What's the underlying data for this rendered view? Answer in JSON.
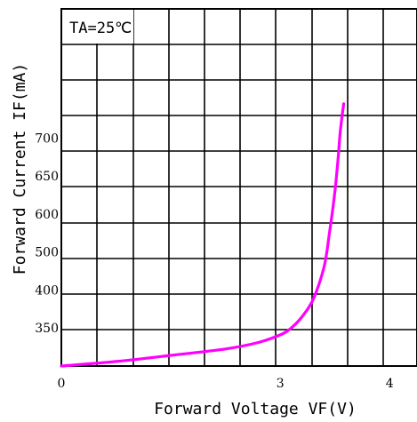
{
  "chart_data": {
    "type": "line",
    "title": "",
    "xlabel": "Forward Voltage VF(V)",
    "ylabel": "Forward Current IF(mA)",
    "annotation": "TA=25℃",
    "x_ticks": [
      {
        "value": 1,
        "label": "0"
      },
      {
        "value": 3,
        "label": "3"
      },
      {
        "value": 4,
        "label": "4"
      }
    ],
    "y_ticks": [
      {
        "value": 1,
        "label": "350"
      },
      {
        "value": 2,
        "label": "400"
      },
      {
        "value": 3,
        "label": "500"
      },
      {
        "value": 4,
        "label": "600"
      },
      {
        "value": 5,
        "label": "650"
      },
      {
        "value": 6,
        "label": "700"
      }
    ],
    "xlim": [
      1,
      4.25
    ],
    "ylim": [
      0,
      9.4
    ],
    "grid": true,
    "series": [
      {
        "color": "#ff00ff",
        "x": [
          1.0,
          1.5,
          2.0,
          2.5,
          2.8,
          3.0,
          3.1,
          3.2,
          3.3,
          3.4,
          3.45,
          3.5,
          3.53,
          3.55,
          3.58
        ],
        "y": [
          0.0,
          0.12,
          0.28,
          0.45,
          0.62,
          0.82,
          1.0,
          1.3,
          1.75,
          2.6,
          3.5,
          4.6,
          5.5,
          6.2,
          6.9
        ]
      }
    ]
  }
}
